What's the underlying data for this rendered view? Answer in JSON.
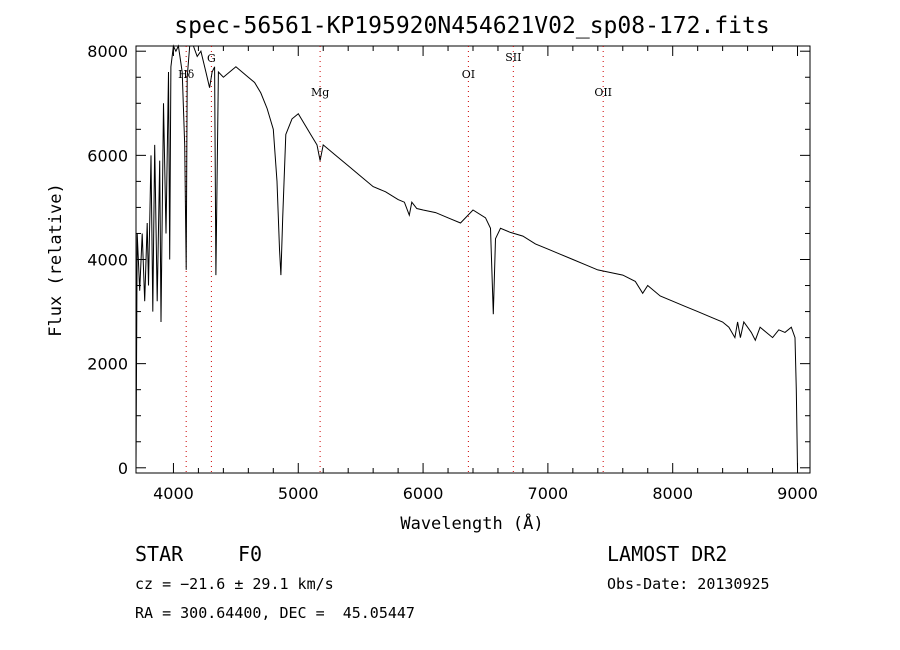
{
  "chart_data": {
    "type": "line",
    "title": "spec-56561-KP195920N454621V02_sp08-172.fits",
    "xlabel": "Wavelength (Å)",
    "ylabel": "Flux (relative)",
    "xlim": [
      3700,
      9100
    ],
    "ylim": [
      -100,
      8100
    ],
    "xticks": [
      4000,
      5000,
      6000,
      7000,
      8000,
      9000
    ],
    "yticks": [
      0,
      2000,
      4000,
      6000,
      8000
    ],
    "grid": false,
    "series": [
      {
        "x": [
          3700,
          3710,
          3730,
          3750,
          3770,
          3790,
          3800,
          3820,
          3835,
          3850,
          3870,
          3890,
          3900,
          3920,
          3940,
          3960,
          3970,
          3980,
          4000,
          4020,
          4040,
          4070,
          4090,
          4102,
          4110,
          4130,
          4160,
          4190,
          4220,
          4260,
          4290,
          4310,
          4330,
          4340,
          4360,
          4400,
          4450,
          4500,
          4550,
          4600,
          4650,
          4700,
          4750,
          4800,
          4830,
          4850,
          4861,
          4875,
          4900,
          4950,
          5000,
          5050,
          5100,
          5150,
          5175,
          5200,
          5300,
          5400,
          5500,
          5600,
          5700,
          5800,
          5850,
          5890,
          5910,
          5950,
          6000,
          6100,
          6200,
          6300,
          6400,
          6500,
          6540,
          6563,
          6580,
          6620,
          6700,
          6800,
          6900,
          7000,
          7100,
          7200,
          7300,
          7400,
          7500,
          7600,
          7700,
          7760,
          7800,
          7900,
          8000,
          8100,
          8200,
          8300,
          8400,
          8450,
          8498,
          8520,
          8542,
          8570,
          8600,
          8630,
          8662,
          8700,
          8750,
          8800,
          8850,
          8900,
          8950,
          8980,
          8990,
          9000
        ],
        "y": [
          0,
          4500,
          3400,
          4500,
          3200,
          4700,
          3500,
          6000,
          3000,
          6200,
          3200,
          5900,
          2800,
          7000,
          4500,
          7600,
          4000,
          7700,
          8100,
          8000,
          8100,
          7600,
          6200,
          3800,
          7500,
          8200,
          8100,
          7900,
          8000,
          7600,
          7300,
          7600,
          7700,
          3700,
          7600,
          7500,
          7600,
          7700,
          7600,
          7500,
          7400,
          7200,
          6900,
          6500,
          5500,
          4200,
          3700,
          4800,
          6400,
          6700,
          6800,
          6600,
          6400,
          6200,
          5900,
          6200,
          6000,
          5800,
          5600,
          5400,
          5300,
          5150,
          5100,
          4850,
          5100,
          4980,
          4950,
          4900,
          4800,
          4700,
          4950,
          4800,
          4600,
          2950,
          4400,
          4600,
          4520,
          4450,
          4300,
          4200,
          4100,
          4000,
          3900,
          3800,
          3750,
          3700,
          3580,
          3350,
          3500,
          3300,
          3200,
          3100,
          3000,
          2900,
          2800,
          2700,
          2500,
          2800,
          2500,
          2800,
          2700,
          2600,
          2450,
          2700,
          2600,
          2500,
          2650,
          2600,
          2700,
          2500,
          1500,
          0
        ]
      }
    ],
    "lines": [
      {
        "label": "Hδ",
        "x": 4102
      },
      {
        "label": "G",
        "x": 4304
      },
      {
        "label": "Mg",
        "x": 5175
      },
      {
        "label": "OI",
        "x": 6363
      },
      {
        "label": "SII",
        "x": 6723
      },
      {
        "label": "OII",
        "x": 7443
      }
    ],
    "line_color": "#cc0000"
  },
  "info": {
    "object_type": "STAR",
    "subclass": "F0",
    "survey": "LAMOST DR2",
    "cz": "cz = −21.6 ± 29.1 km/s",
    "obs_date": "Obs-Date: 20130925",
    "radec": "RA = 300.64400, DEC =  45.05447"
  }
}
